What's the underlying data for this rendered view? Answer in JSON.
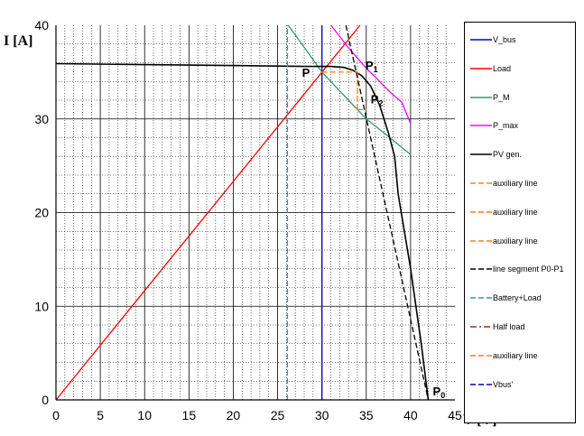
{
  "chart_data": {
    "type": "line",
    "xlabel": "V [V]",
    "ylabel": "I [A]",
    "xlim": [
      0,
      45
    ],
    "ylim": [
      0,
      40
    ],
    "x_ticks": [
      "0",
      "5",
      "10",
      "15",
      "20",
      "25",
      "30",
      "35",
      "40",
      "45"
    ],
    "y_ticks": [
      "0",
      "10",
      "20",
      "30",
      "40"
    ],
    "grid": true,
    "legend_position": "right",
    "series": [
      {
        "name": "V_bus",
        "color": "#0000cc",
        "dash": "solid",
        "points": [
          [
            30,
            0
          ],
          [
            30,
            40
          ]
        ]
      },
      {
        "name": "Load",
        "color": "#ff0000",
        "dash": "solid",
        "points": [
          [
            0,
            0
          ],
          [
            34.3,
            40
          ]
        ]
      },
      {
        "name": "P_M",
        "color": "#339966",
        "dash": "solid",
        "points": [
          [
            26.2,
            40
          ],
          [
            28.5,
            37
          ],
          [
            30,
            35
          ],
          [
            33,
            32
          ],
          [
            35,
            30
          ],
          [
            37,
            28.5
          ],
          [
            40,
            26.2
          ]
        ]
      },
      {
        "name": "P_max",
        "color": "#ff00ff",
        "dash": "solid",
        "points": [
          [
            31,
            40
          ],
          [
            32,
            38.8
          ],
          [
            33,
            37.6
          ],
          [
            34,
            36.5
          ],
          [
            35,
            35.4
          ],
          [
            36,
            34.5
          ],
          [
            37,
            33.5
          ],
          [
            38,
            32.6
          ],
          [
            39,
            31.8
          ],
          [
            40,
            29.5
          ]
        ]
      },
      {
        "name": "PV gen.",
        "color": "#000000",
        "dash": "solid",
        "points": [
          [
            0,
            35.9
          ],
          [
            10,
            35.8
          ],
          [
            20,
            35.7
          ],
          [
            28,
            35.6
          ],
          [
            31,
            35.6
          ],
          [
            32.5,
            35.5
          ],
          [
            33.5,
            35.2
          ],
          [
            34.5,
            34.6
          ],
          [
            35.5,
            33.5
          ],
          [
            36.5,
            31.5
          ],
          [
            37.5,
            28.5
          ],
          [
            38.2,
            26
          ],
          [
            38.6,
            22
          ],
          [
            39.3,
            18
          ],
          [
            40,
            14
          ],
          [
            40.6,
            10
          ],
          [
            41.2,
            6
          ],
          [
            41.6,
            3
          ],
          [
            42,
            0
          ]
        ]
      },
      {
        "name": "auxiliary line",
        "color": "#ff8000",
        "dash": "dashed",
        "points": [
          [
            30,
            35
          ],
          [
            34,
            35
          ]
        ]
      },
      {
        "name": "auxiliary line",
        "color": "#ff8000",
        "dash": "dashed",
        "points": [
          [
            34,
            35
          ],
          [
            34,
            31
          ]
        ]
      },
      {
        "name": "auxiliary line",
        "color": "#ff8000",
        "dash": "dashed",
        "points": [
          [
            34,
            31
          ],
          [
            35,
            31
          ]
        ]
      },
      {
        "name": "line segment P0-P1",
        "color": "#000000",
        "dash": "dashed",
        "points": [
          [
            32.7,
            40
          ],
          [
            42,
            0
          ]
        ]
      },
      {
        "name": "Battery+Load",
        "color": "#339999",
        "dash": "dashed",
        "points": [
          [
            26.1,
            0
          ],
          [
            26.1,
            40
          ]
        ]
      },
      {
        "name": "Half load",
        "color": "#993300",
        "dash": "dashdot",
        "points": []
      },
      {
        "name": "auxiliary line",
        "color": "#ff8000",
        "dash": "dashed",
        "points": []
      },
      {
        "name": "Vbus'",
        "color": "#0000cc",
        "dash": "dashed",
        "points": []
      }
    ],
    "annotations": [
      {
        "label": "P",
        "sub": "",
        "x": 30,
        "y": 35
      },
      {
        "label": "P",
        "sub": "1",
        "x": 34.3,
        "y": 35
      },
      {
        "label": "P",
        "sub": "2",
        "x": 35,
        "y": 31
      },
      {
        "label": "P",
        "sub": "0",
        "x": 42,
        "y": 0
      }
    ]
  }
}
